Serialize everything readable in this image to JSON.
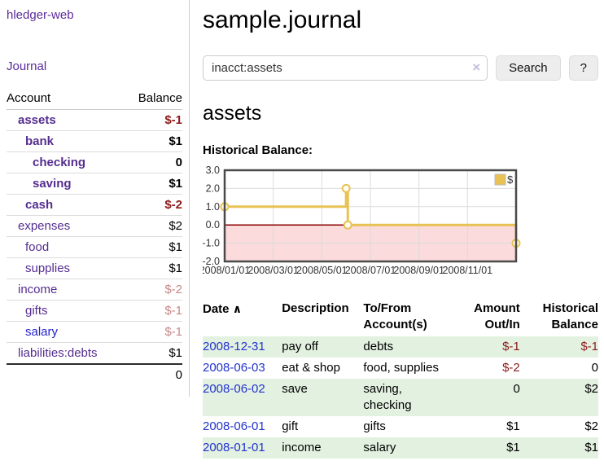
{
  "sidebar": {
    "brand": "hledger-web",
    "nav": {
      "journal": "Journal"
    },
    "accounts_table": {
      "headers": {
        "account": "Account",
        "balance": "Balance"
      },
      "rows": [
        {
          "name": "assets",
          "level": 1,
          "emphasis": true,
          "balance": "$-1",
          "balance_tone": "neg-strong"
        },
        {
          "name": "bank",
          "level": 2,
          "emphasis": true,
          "balance": "$1",
          "balance_tone": ""
        },
        {
          "name": "checking",
          "level": 3,
          "emphasis": true,
          "balance": "0",
          "balance_tone": ""
        },
        {
          "name": "saving",
          "level": 3,
          "emphasis": true,
          "balance": "$1",
          "balance_tone": ""
        },
        {
          "name": "cash",
          "level": 2,
          "emphasis": true,
          "balance": "$-2",
          "balance_tone": "neg-strong"
        },
        {
          "name": "expenses",
          "level": 1,
          "emphasis": false,
          "balance": "$2",
          "balance_tone": ""
        },
        {
          "name": "food",
          "level": 2,
          "emphasis": false,
          "balance": "$1",
          "balance_tone": ""
        },
        {
          "name": "supplies",
          "level": 2,
          "emphasis": false,
          "balance": "$1",
          "balance_tone": ""
        },
        {
          "name": "income",
          "level": 1,
          "emphasis": false,
          "balance": "$-2",
          "balance_tone": "neg-soft"
        },
        {
          "name": "gifts",
          "level": 2,
          "emphasis": false,
          "balance": "$-1",
          "balance_tone": "neg-soft"
        },
        {
          "name": "salary",
          "level": 2,
          "emphasis": false,
          "link_color": "blue",
          "balance": "$-1",
          "balance_tone": "neg-soft"
        },
        {
          "name": "liabilities:debts",
          "level": 1,
          "emphasis": false,
          "balance": "$1",
          "balance_tone": ""
        }
      ],
      "total": "0"
    }
  },
  "header": {
    "title": "sample.journal"
  },
  "search": {
    "query": "inacct:assets",
    "clear_icon": "×",
    "button_label": "Search",
    "help_label": "?"
  },
  "main": {
    "account_heading": "assets"
  },
  "chart_data": {
    "type": "line",
    "title": "Historical Balance:",
    "step": "after",
    "legend": [
      {
        "label": "$",
        "color": "#E8C254"
      }
    ],
    "x_ticks": [
      "2008/01/01",
      "2008/03/01",
      "2008/05/01",
      "2008/07/01",
      "2008/09/01",
      "2008/11/01"
    ],
    "x_tick_months": [
      0,
      2,
      4,
      6,
      8,
      10
    ],
    "x_span_months": 12,
    "y_tick_labels": [
      "3.0",
      "2.0",
      "1.0",
      "0.0",
      "-1.0",
      "-2.0"
    ],
    "y_ticks": [
      3,
      2,
      1,
      0,
      -1,
      -2
    ],
    "ylim": [
      -2,
      3
    ],
    "points": [
      {
        "date": "2008-01-01",
        "x_month": 0,
        "y": 1
      },
      {
        "date": "2008-06-01",
        "x_month": 5.0,
        "y": 2
      },
      {
        "date": "2008-06-03",
        "x_month": 5.07,
        "y": 0
      },
      {
        "date": "2008-12-31",
        "x_month": 12,
        "y": -1
      }
    ],
    "line_color": "#E8C254",
    "marker_fill": "#FFFDF2",
    "negative_region_color": "#FBDBDB",
    "zero_line_color": "#8B0000",
    "grid_color": "#DBDBDB",
    "border_color": "#4A4A4A"
  },
  "register": {
    "headers": {
      "date": "Date",
      "sort_icon": "∧",
      "description": "Description",
      "accounts": "To/From Account(s)",
      "amount": "Amount Out/In",
      "balance": "Historical Balance"
    },
    "rows": [
      {
        "date": "2008-12-31",
        "description": "pay off",
        "accounts": "debts",
        "amount": "$-1",
        "amount_tone": "neg",
        "balance": "$-1",
        "balance_tone": "neg"
      },
      {
        "date": "2008-06-03",
        "description": "eat & shop",
        "accounts": "food, supplies",
        "amount": "$-2",
        "amount_tone": "neg",
        "balance": "0",
        "balance_tone": ""
      },
      {
        "date": "2008-06-02",
        "description": "save",
        "accounts": "saving, checking",
        "amount": "0",
        "amount_tone": "",
        "balance": "$2",
        "balance_tone": ""
      },
      {
        "date": "2008-06-01",
        "description": "gift",
        "accounts": "gifts",
        "amount": "$1",
        "amount_tone": "",
        "balance": "$2",
        "balance_tone": ""
      },
      {
        "date": "2008-01-01",
        "description": "income",
        "accounts": "salary",
        "amount": "$1",
        "amount_tone": "",
        "balance": "$1",
        "balance_tone": ""
      }
    ]
  }
}
